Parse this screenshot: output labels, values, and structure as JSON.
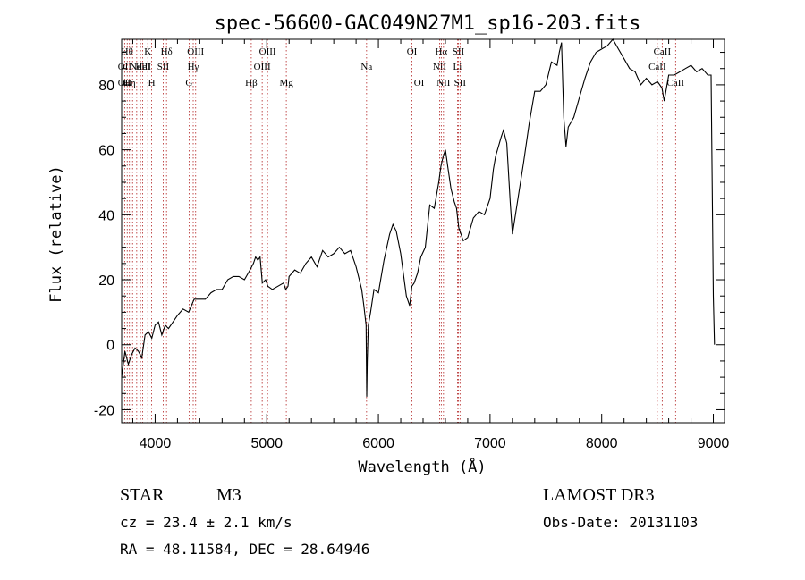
{
  "chart_data": {
    "type": "line",
    "title": "spec-56600-GAC049N27M1_sp16-203.fits",
    "xlabel": "Wavelength (Å)",
    "ylabel": "Flux (relative)",
    "xlim": [
      3700,
      9100
    ],
    "ylim": [
      -24,
      94
    ],
    "x_ticks": [
      4000,
      5000,
      6000,
      7000,
      8000,
      9000
    ],
    "y_ticks": [
      -20,
      0,
      20,
      40,
      60,
      80
    ],
    "grid": false,
    "series": [
      {
        "name": "flux",
        "x": [
          3700,
          3730,
          3760,
          3790,
          3820,
          3850,
          3880,
          3910,
          3940,
          3970,
          4000,
          4030,
          4060,
          4090,
          4120,
          4160,
          4200,
          4250,
          4300,
          4350,
          4400,
          4450,
          4500,
          4550,
          4600,
          4650,
          4700,
          4750,
          4800,
          4850,
          4880,
          4900,
          4920,
          4940,
          4960,
          4990,
          5010,
          5050,
          5100,
          5150,
          5170,
          5190,
          5200,
          5250,
          5300,
          5350,
          5400,
          5450,
          5500,
          5550,
          5600,
          5650,
          5700,
          5750,
          5800,
          5850,
          5870,
          5890,
          5895,
          5900,
          5910,
          5930,
          5960,
          6000,
          6050,
          6100,
          6130,
          6160,
          6200,
          6250,
          6280,
          6300,
          6320,
          6350,
          6380,
          6420,
          6460,
          6500,
          6540,
          6560,
          6580,
          6600,
          6620,
          6650,
          6680,
          6700,
          6720,
          6740,
          6760,
          6800,
          6850,
          6900,
          6950,
          7000,
          7030,
          7050,
          7100,
          7120,
          7150,
          7180,
          7200,
          7250,
          7300,
          7350,
          7400,
          7450,
          7500,
          7550,
          7600,
          7620,
          7640,
          7660,
          7680,
          7700,
          7750,
          7800,
          7850,
          7900,
          7950,
          8000,
          8050,
          8100,
          8150,
          8200,
          8250,
          8300,
          8350,
          8400,
          8450,
          8500,
          8540,
          8560,
          8600,
          8650,
          8700,
          8750,
          8800,
          8850,
          8900,
          8950,
          8980,
          9000,
          9010
        ],
        "y": [
          -10,
          -2,
          -6,
          -3,
          -1,
          -2,
          -4,
          3,
          4,
          2,
          6,
          7,
          3,
          6,
          5,
          7,
          9,
          11,
          10,
          14,
          14,
          14,
          16,
          17,
          17,
          20,
          21,
          21,
          20,
          23,
          25,
          27,
          26,
          27,
          19,
          20,
          18,
          17,
          18,
          19,
          17,
          18,
          21,
          23,
          22,
          25,
          27,
          24,
          29,
          27,
          28,
          30,
          28,
          29,
          24,
          17,
          12,
          6,
          -16,
          -5,
          6,
          10,
          17,
          16,
          26,
          34,
          37,
          35,
          28,
          15,
          12,
          18,
          19,
          22,
          27,
          30,
          43,
          42,
          50,
          55,
          58,
          60,
          55,
          48,
          44,
          42,
          36,
          34,
          32,
          33,
          39,
          41,
          40,
          45,
          54,
          58,
          64,
          66,
          62,
          44,
          34,
          45,
          56,
          68,
          78,
          78,
          80,
          87,
          86,
          90,
          93,
          70,
          61,
          67,
          70,
          76,
          82,
          87,
          90,
          91,
          92,
          94,
          91,
          88,
          85,
          84,
          80,
          82,
          80,
          81,
          79,
          75,
          83,
          83,
          84,
          85,
          86,
          84,
          85,
          83,
          83,
          15,
          0
        ]
      }
    ],
    "lines": [
      {
        "lambda": 3727,
        "row1": "",
        "row2": "OII",
        "row3": "OII"
      },
      {
        "lambda": 3750,
        "row1": "Hθ",
        "row2": "",
        "row3": ""
      },
      {
        "lambda": 3770,
        "row1": "",
        "row2": "",
        "row3": "Hη"
      },
      {
        "lambda": 3798,
        "row1": "",
        "row2": "",
        "row3": ""
      },
      {
        "lambda": 3835,
        "row1": "",
        "row2": "",
        "row3": ""
      },
      {
        "lambda": 3869,
        "row1": "",
        "row2": "NeIII",
        "row3": ""
      },
      {
        "lambda": 3889,
        "row1": "",
        "row2": "HeI",
        "row3": ""
      },
      {
        "lambda": 3934,
        "row1": "K",
        "row2": "",
        "row3": ""
      },
      {
        "lambda": 3969,
        "row1": "",
        "row2": "",
        "row3": "H"
      },
      {
        "lambda": 4072,
        "row1": "",
        "row2": "SII",
        "row3": ""
      },
      {
        "lambda": 4102,
        "row1": "Hδ",
        "row2": "",
        "row3": ""
      },
      {
        "lambda": 4304,
        "row1": "",
        "row2": "",
        "row3": "G"
      },
      {
        "lambda": 4341,
        "row1": "",
        "row2": "Hγ",
        "row3": ""
      },
      {
        "lambda": 4363,
        "row1": "OIII",
        "row2": "",
        "row3": ""
      },
      {
        "lambda": 4861,
        "row1": "",
        "row2": "",
        "row3": "Hβ"
      },
      {
        "lambda": 4959,
        "row1": "",
        "row2": "OIII",
        "row3": ""
      },
      {
        "lambda": 5007,
        "row1": "OIII",
        "row2": "",
        "row3": ""
      },
      {
        "lambda": 5175,
        "row1": "",
        "row2": "",
        "row3": "Mg"
      },
      {
        "lambda": 5894,
        "row1": "",
        "row2": "Na",
        "row3": ""
      },
      {
        "lambda": 6300,
        "row1": "OI",
        "row2": "",
        "row3": ""
      },
      {
        "lambda": 6364,
        "row1": "",
        "row2": "",
        "row3": "OI"
      },
      {
        "lambda": 6548,
        "row1": "",
        "row2": "NII",
        "row3": ""
      },
      {
        "lambda": 6563,
        "row1": "Hα",
        "row2": "",
        "row3": ""
      },
      {
        "lambda": 6583,
        "row1": "",
        "row2": "",
        "row3": "NII"
      },
      {
        "lambda": 6708,
        "row1": "",
        "row2": "Li",
        "row3": ""
      },
      {
        "lambda": 6716,
        "row1": "SII",
        "row2": "",
        "row3": ""
      },
      {
        "lambda": 6731,
        "row1": "",
        "row2": "",
        "row3": "SII"
      },
      {
        "lambda": 8498,
        "row1": "",
        "row2": "CaII",
        "row3": ""
      },
      {
        "lambda": 8542,
        "row1": "CaII",
        "row2": "",
        "row3": ""
      },
      {
        "lambda": 8662,
        "row1": "",
        "row2": "",
        "row3": "CaII"
      }
    ]
  },
  "info": {
    "object_type": "STAR",
    "subclass": "M3",
    "survey": "LAMOST DR3",
    "redshift": "cz = 23.4 ± 2.1 km/s",
    "obs_date": "Obs-Date: 20131103",
    "coords": "RA =  48.11584, DEC =  28.64946"
  },
  "colors": {
    "line": "#000000",
    "marker": "#b22222"
  }
}
